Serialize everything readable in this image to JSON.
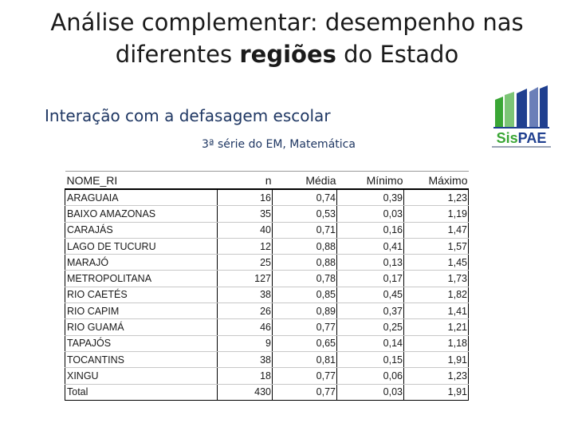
{
  "title": {
    "line1": "Análise complementar: desempenho nas",
    "line2_pre": "diferentes ",
    "line2_bold": "regiões",
    "line2_post": " do Estado"
  },
  "subtitle": "Interação com a defasagem escolar",
  "caption": "3ª série do EM, Matemática",
  "logo": {
    "text_a": "Sis",
    "text_b": "PAE"
  },
  "table": {
    "headers": [
      "NOME_RI",
      "n",
      "Média",
      "Mínimo",
      "Máximo"
    ],
    "rows": [
      [
        "ARAGUAIA",
        "16",
        "0,74",
        "0,39",
        "1,23"
      ],
      [
        "BAIXO AMAZONAS",
        "35",
        "0,53",
        "0,03",
        "1,19"
      ],
      [
        "CARAJÁS",
        "40",
        "0,71",
        "0,16",
        "1,47"
      ],
      [
        "LAGO DE TUCURU",
        "12",
        "0,88",
        "0,41",
        "1,57"
      ],
      [
        "MARAJÓ",
        "25",
        "0,88",
        "0,13",
        "1,45"
      ],
      [
        "METROPOLITANA",
        "127",
        "0,78",
        "0,17",
        "1,73"
      ],
      [
        "RIO CAETÉS",
        "38",
        "0,85",
        "0,45",
        "1,82"
      ],
      [
        "RIO CAPIM",
        "26",
        "0,89",
        "0,37",
        "1,41"
      ],
      [
        "RIO GUAMÁ",
        "46",
        "0,77",
        "0,25",
        "1,21"
      ],
      [
        "TAPAJÓS",
        "9",
        "0,65",
        "0,14",
        "1,18"
      ],
      [
        "TOCANTINS",
        "38",
        "0,81",
        "0,15",
        "1,91"
      ],
      [
        "XINGU",
        "18",
        "0,77",
        "0,06",
        "1,23"
      ],
      [
        "Total",
        "430",
        "0,77",
        "0,03",
        "1,91"
      ]
    ]
  },
  "colors": {
    "heading_blue": "#1f3763",
    "logo_blue": "#1f3f8f",
    "logo_green": "#3aa635"
  }
}
